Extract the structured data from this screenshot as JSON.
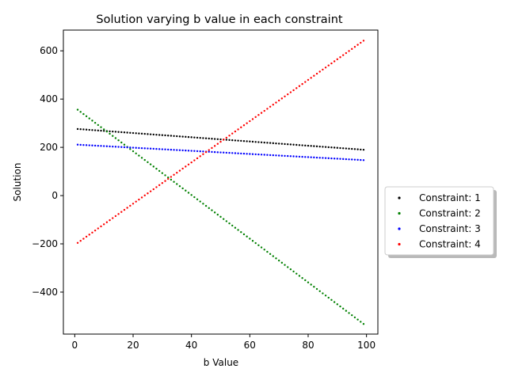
{
  "chart_data": {
    "type": "scatter",
    "title": "Solution varying b value in each constraint",
    "xlabel": "b Value",
    "ylabel": "Solution",
    "xlim": [
      -3.9,
      103.9
    ],
    "ylim": [
      -574,
      686
    ],
    "xticks": [
      0,
      20,
      40,
      60,
      80,
      100
    ],
    "yticks": [
      -400,
      -200,
      0,
      200,
      400,
      600
    ],
    "grid": false,
    "legend_placement": "right, outside plot area",
    "series": [
      {
        "name": "Constraint: 1",
        "color": "#000000",
        "x_start": 1,
        "x_end": 99,
        "y_start": 276,
        "y_end": 190
      },
      {
        "name": "Constraint: 2",
        "color": "#008000",
        "x_start": 1,
        "x_end": 99,
        "y_start": 356,
        "y_end": -532
      },
      {
        "name": "Constraint: 3",
        "color": "#0000ff",
        "x_start": 1,
        "x_end": 99,
        "y_start": 211,
        "y_end": 147
      },
      {
        "name": "Constraint: 4",
        "color": "#ff0000",
        "x_start": 1,
        "x_end": 99,
        "y_start": -196,
        "y_end": 642
      }
    ]
  }
}
